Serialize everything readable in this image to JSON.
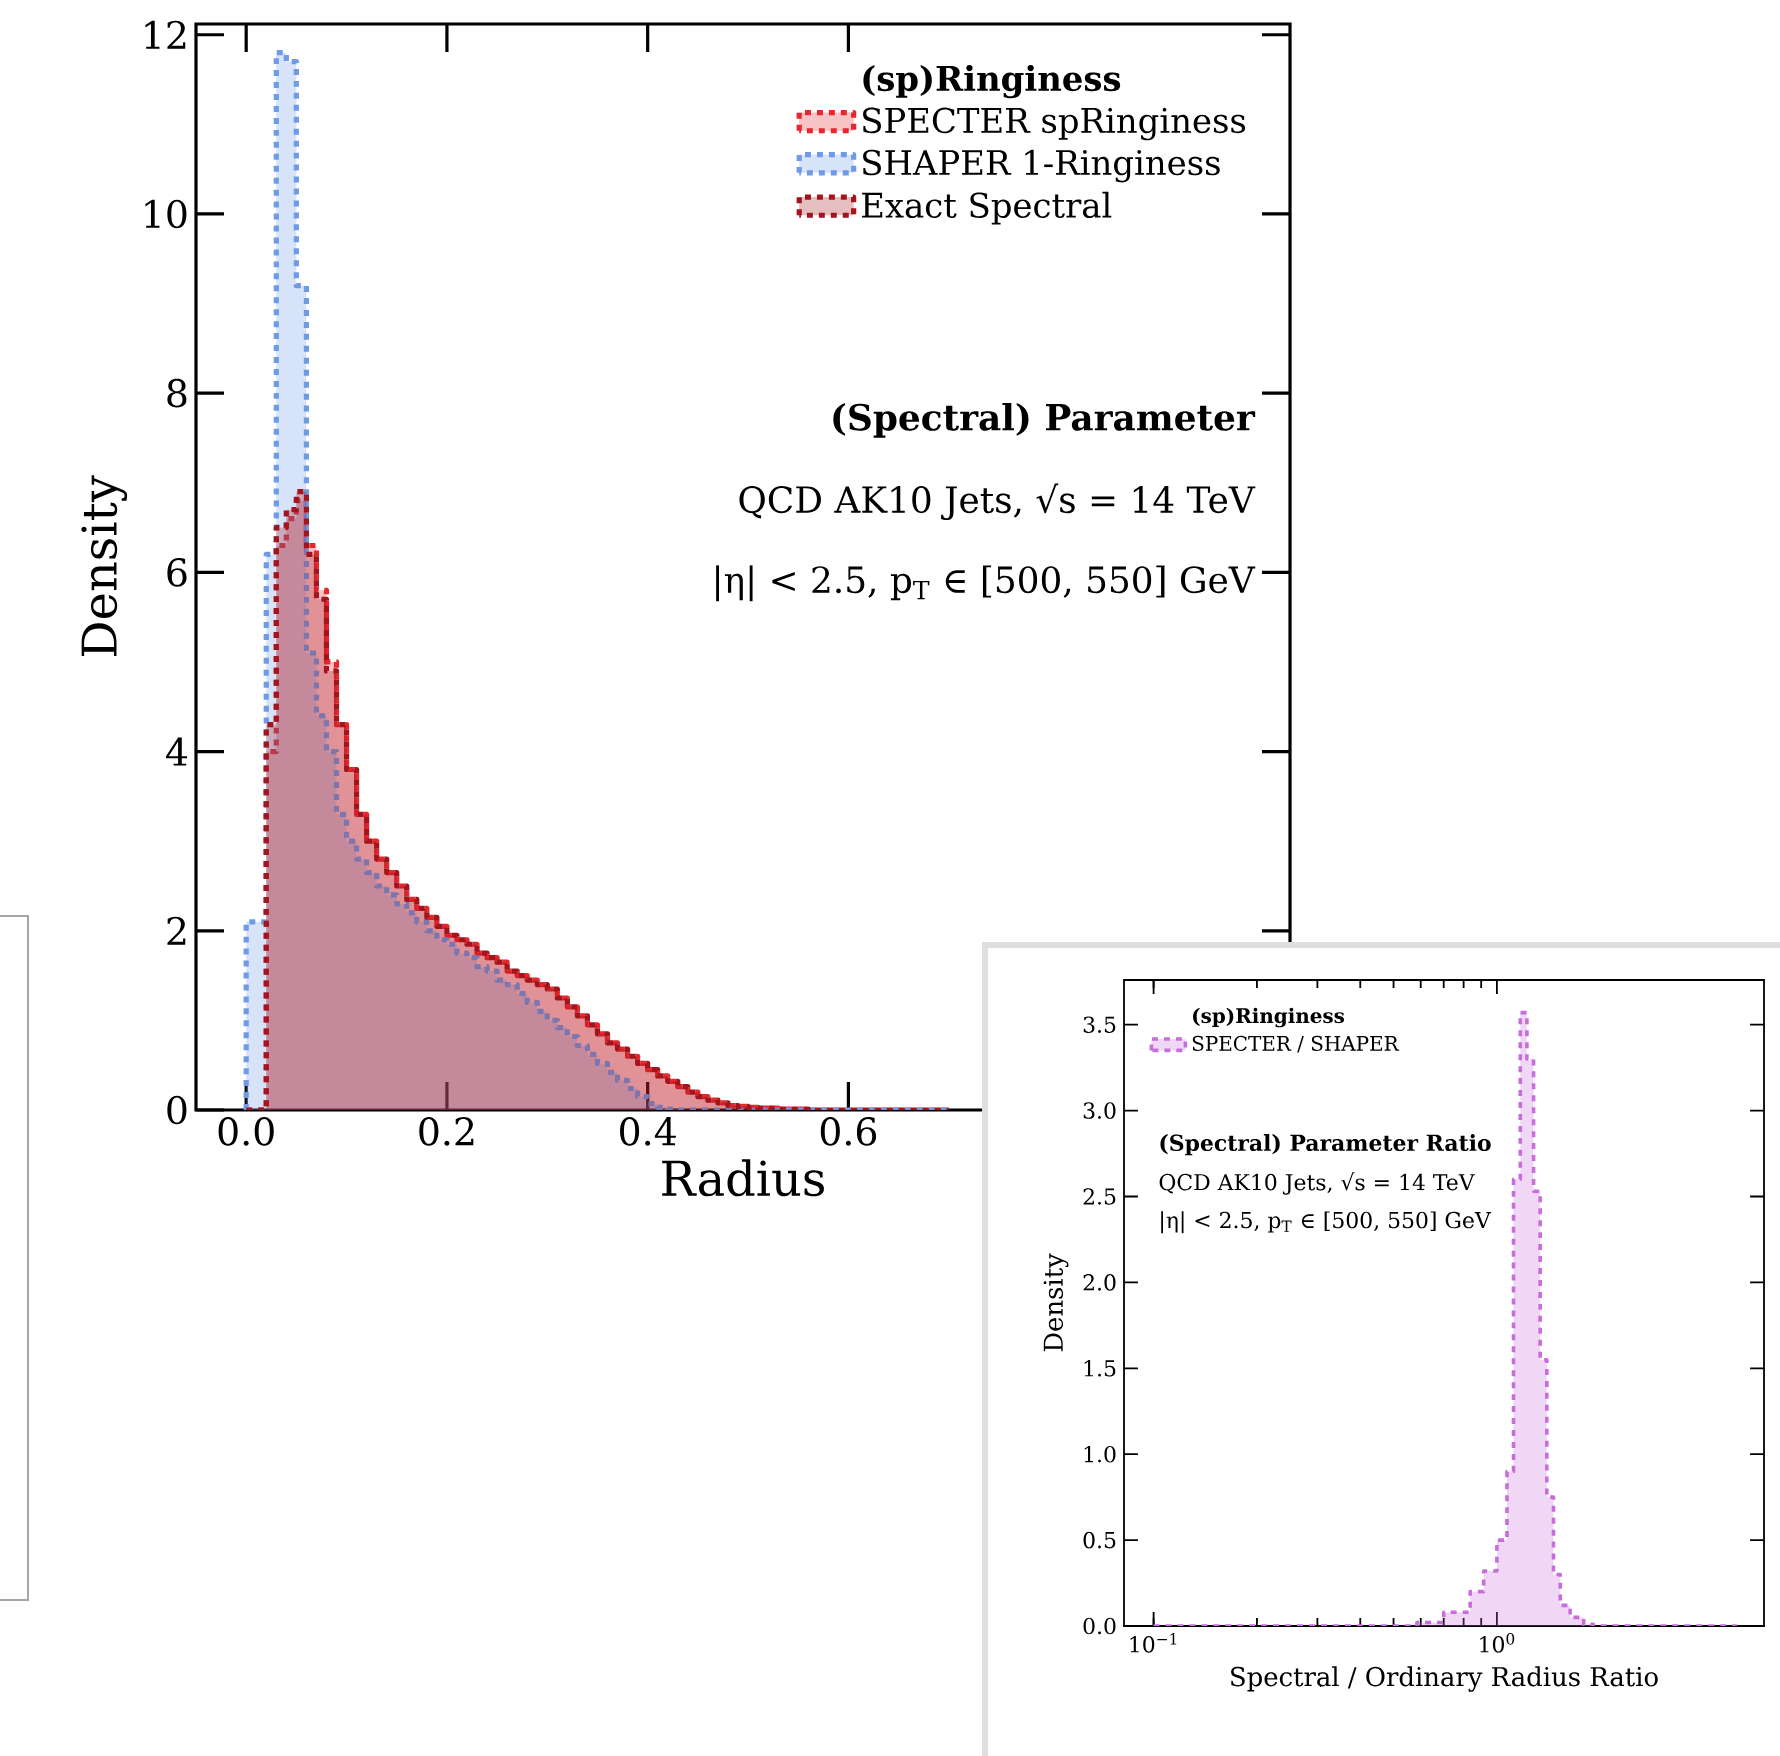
{
  "chart_data": [
    {
      "type": "histogram",
      "xlabel": "Radius",
      "ylabel": "Density",
      "legend_title": "(sp)Ringiness",
      "annotations": [
        "(Spectral) Parameter",
        "QCD AK10 Jets, √s = 14 TeV",
        "|η| < 2.5, p$_{T}$ ∈ [500, 550] GeV"
      ],
      "bins": [
        0,
        0.01,
        0.02,
        0.03,
        0.04,
        0.05,
        0.06,
        0.07,
        0.08,
        0.09,
        0.1,
        0.11,
        0.12,
        0.13,
        0.14,
        0.15,
        0.16,
        0.17,
        0.18,
        0.19,
        0.2,
        0.21,
        0.22,
        0.23,
        0.24,
        0.25,
        0.26,
        0.27,
        0.28,
        0.29,
        0.3,
        0.31,
        0.32,
        0.33,
        0.34,
        0.35,
        0.36,
        0.37,
        0.38,
        0.39,
        0.4,
        0.41,
        0.42,
        0.43,
        0.44,
        0.45,
        0.46,
        0.47,
        0.48,
        0.49,
        0.5,
        0.51,
        0.52,
        0.53,
        0.54,
        0.55,
        0.56,
        0.57,
        0.58,
        0.59,
        0.6,
        0.61,
        0.62,
        0.63,
        0.64,
        0.65,
        0.66,
        0.67,
        0.68,
        0.69,
        0.7
      ],
      "series": [
        {
          "name": "SPECTER spRinginess",
          "color": "#e8262d",
          "values": [
            0,
            0,
            4.0,
            6.3,
            6.6,
            6.8,
            6.3,
            5.8,
            5.0,
            4.3,
            3.8,
            3.3,
            3.0,
            2.8,
            2.65,
            2.5,
            2.35,
            2.25,
            2.15,
            2.05,
            1.95,
            1.9,
            1.85,
            1.75,
            1.7,
            1.65,
            1.55,
            1.5,
            1.45,
            1.4,
            1.35,
            1.25,
            1.15,
            1.05,
            0.95,
            0.85,
            0.75,
            0.68,
            0.6,
            0.52,
            0.45,
            0.38,
            0.32,
            0.26,
            0.2,
            0.15,
            0.11,
            0.08,
            0.05,
            0.04,
            0.03,
            0.02,
            0.02,
            0.01,
            0.01,
            0.01,
            0,
            0,
            0,
            0,
            0,
            0,
            0,
            0,
            0,
            0,
            0,
            0,
            0,
            0
          ]
        },
        {
          "name": "SHAPER 1-Ringiness",
          "color": "#6f9be6",
          "values": [
            2.1,
            2.1,
            6.2,
            11.8,
            11.7,
            9.2,
            5.1,
            4.4,
            4.0,
            3.3,
            3.0,
            2.8,
            2.65,
            2.5,
            2.4,
            2.3,
            2.2,
            2.1,
            2.0,
            1.9,
            1.85,
            1.75,
            1.7,
            1.6,
            1.55,
            1.45,
            1.4,
            1.3,
            1.2,
            1.1,
            1.0,
            0.92,
            0.82,
            0.72,
            0.62,
            0.52,
            0.42,
            0.33,
            0.24,
            0.15,
            0.07,
            0.03,
            0.01,
            0,
            0,
            0,
            0,
            0,
            0,
            0,
            0,
            0,
            0,
            0,
            0,
            0,
            0,
            0,
            0,
            0,
            0,
            0,
            0,
            0,
            0,
            0,
            0,
            0,
            0,
            0
          ]
        },
        {
          "name": "Exact Spectral",
          "color": "#a3141c",
          "values": [
            0,
            0,
            4.3,
            6.5,
            6.7,
            6.9,
            6.2,
            5.7,
            4.9,
            4.3,
            3.8,
            3.3,
            3.0,
            2.8,
            2.65,
            2.5,
            2.35,
            2.25,
            2.15,
            2.05,
            1.95,
            1.9,
            1.85,
            1.75,
            1.7,
            1.65,
            1.55,
            1.5,
            1.45,
            1.4,
            1.35,
            1.25,
            1.15,
            1.05,
            0.95,
            0.85,
            0.75,
            0.68,
            0.6,
            0.52,
            0.45,
            0.38,
            0.32,
            0.26,
            0.2,
            0.15,
            0.11,
            0.08,
            0.05,
            0.04,
            0.03,
            0.02,
            0.02,
            0.01,
            0.01,
            0.01,
            0,
            0,
            0,
            0,
            0,
            0,
            0,
            0,
            0,
            0,
            0,
            0,
            0,
            0
          ]
        }
      ],
      "xlim": [
        -0.05,
        1.04
      ],
      "ylim": [
        0,
        12.12
      ],
      "xticks": [
        {
          "value": 0,
          "label": "0.0"
        },
        0.2,
        0.4,
        0.6
      ],
      "yticks": [
        0,
        2,
        4,
        6,
        8,
        10,
        12
      ],
      "legend": "top right",
      "line_style": "dashed",
      "grid": false
    },
    {
      "type": "histogram",
      "xlabel": "Spectral / Ordinary Radius Ratio",
      "ylabel": "Density",
      "legend_title": "(sp)Ringiness",
      "annotations": [
        "(Spectral) Parameter Ratio",
        "QCD AK10 Jets, √s = 14 TeV",
        "|η| < 2.5, p$_{T}$ ∈ [500, 550] GeV"
      ],
      "bins": [
        0.1,
        0.585,
        0.7,
        0.836,
        0.915,
        1.0,
        1.07,
        1.118,
        1.17,
        1.223,
        1.279,
        1.337,
        1.398,
        1.462,
        1.53,
        1.635,
        1.79,
        1.91,
        5.0
      ],
      "series": [
        {
          "name": "SPECTER / SHAPER",
          "color": "#c86edc",
          "values": [
            0,
            0.02,
            0.08,
            0.2,
            0.32,
            0.5,
            0.9,
            2.6,
            3.57,
            3.3,
            2.53,
            1.55,
            0.75,
            0.3,
            0.12,
            0.05,
            0.01,
            0
          ]
        }
      ],
      "xlim": [
        0.082,
        6.0
      ],
      "ylim": [
        0,
        3.76
      ],
      "xticks": [
        {
          "value": 0.1,
          "label": "10$^{−1}$"
        },
        {
          "value": 1,
          "label": "10$^{0}$"
        }
      ],
      "yticks": [
        {
          "value": 0,
          "label": "0.0"
        },
        {
          "value": 0.5,
          "label": "0.5"
        },
        {
          "value": 1,
          "label": "1.0"
        },
        {
          "value": 1.5,
          "label": "1.5"
        },
        {
          "value": 2,
          "label": "2.0"
        },
        {
          "value": 2.5,
          "label": "2.5"
        },
        {
          "value": 3,
          "label": "3.0"
        },
        {
          "value": 3.5,
          "label": "3.5"
        }
      ],
      "log": "x",
      "legend": "top left",
      "line_style": "dashed",
      "grid": false
    }
  ]
}
